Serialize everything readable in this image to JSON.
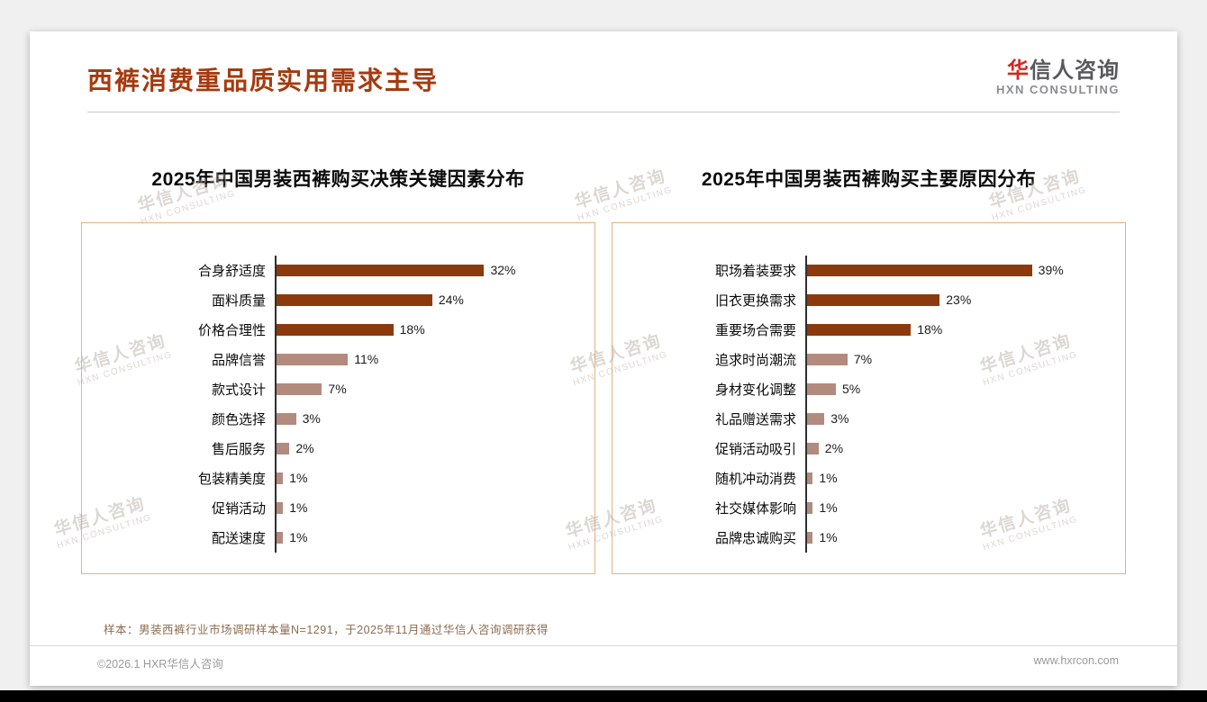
{
  "page": {
    "title": "西裤消费重品质实用需求主导",
    "logo": {
      "accent": "华",
      "rest": "信人咨询",
      "sub": "HXN CONSULTING"
    },
    "footnote": "样本：男装西裤行业市场调研样本量N=1291，于2025年11月通过华信人咨询调研获得",
    "copyright": "©2026.1 HXR华信人咨询",
    "website": "www.hxrcon.com",
    "watermark": {
      "line1": "华信人咨询",
      "line2": "HXN CONSULTING"
    }
  },
  "colors": {
    "title": "#a53a0e",
    "bar_dark": "#8b3a0e",
    "bar_light": "#b28b7e",
    "box_border": "#e9b27e",
    "logo_red": "#d2281e"
  },
  "chart_data": [
    {
      "type": "bar",
      "orientation": "horizontal",
      "title": "2025年中国男装西裤购买决策关键因素分布",
      "categories": [
        "合身舒适度",
        "面料质量",
        "价格合理性",
        "品牌信誉",
        "款式设计",
        "颜色选择",
        "售后服务",
        "包装精美度",
        "促销活动",
        "配送速度"
      ],
      "values": [
        32,
        24,
        18,
        11,
        7,
        3,
        2,
        1,
        1,
        1
      ],
      "unit": "%",
      "xlim": [
        0,
        40
      ],
      "dark_count": 3,
      "grid": false,
      "legend": "none"
    },
    {
      "type": "bar",
      "orientation": "horizontal",
      "title": "2025年中国男装西裤购买主要原因分布",
      "categories": [
        "职场着装要求",
        "旧衣更换需求",
        "重要场合需要",
        "追求时尚潮流",
        "身材变化调整",
        "礼品赠送需求",
        "促销活动吸引",
        "随机冲动消费",
        "社交媒体影响",
        "品牌忠诚购买"
      ],
      "values": [
        39,
        23,
        18,
        7,
        5,
        3,
        2,
        1,
        1,
        1
      ],
      "unit": "%",
      "xlim": [
        0,
        45
      ],
      "dark_count": 3,
      "grid": false,
      "legend": "none"
    }
  ]
}
